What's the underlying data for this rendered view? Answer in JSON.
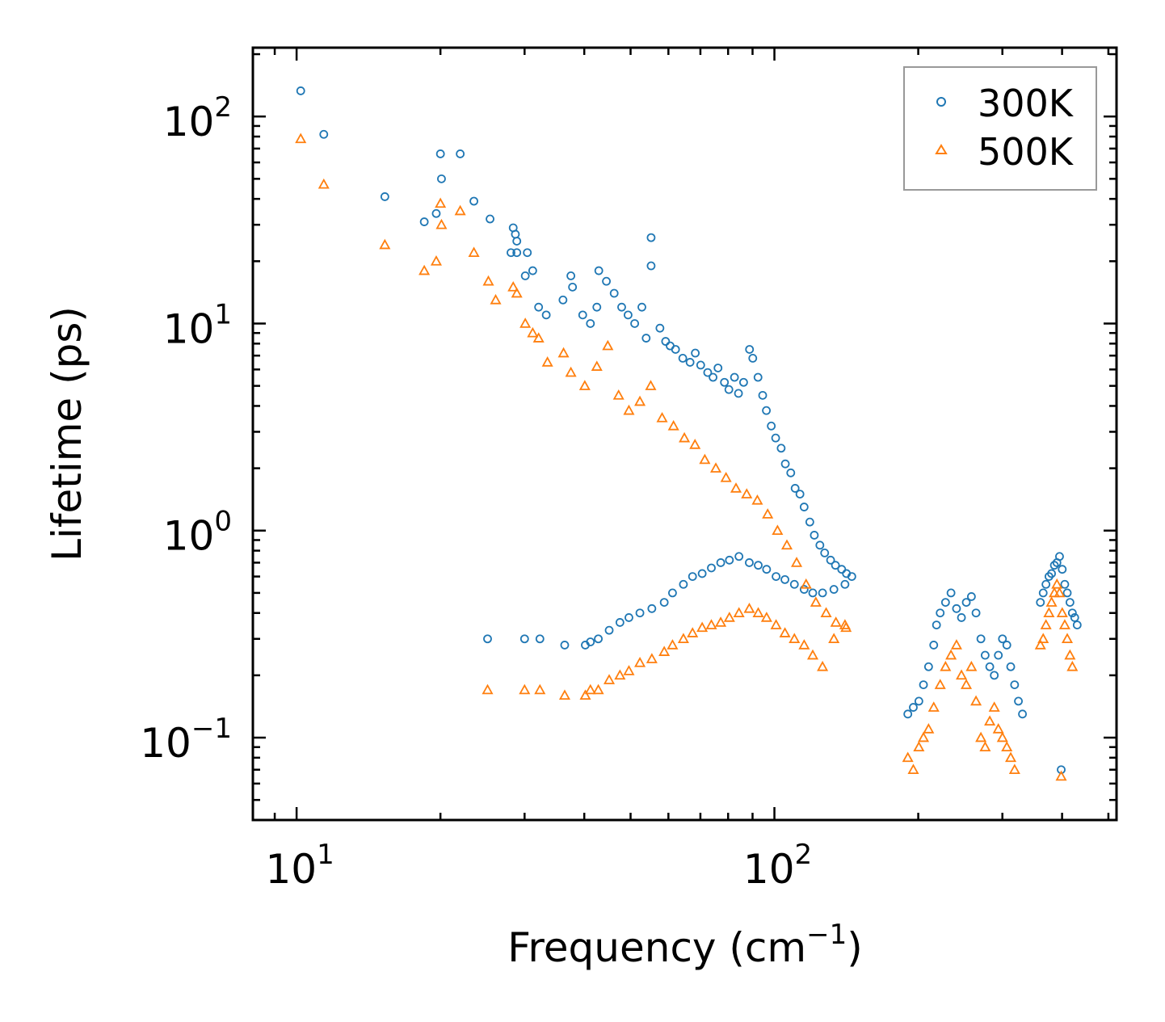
{
  "chart_data": {
    "type": "scatter",
    "title": "",
    "xlabel": "Frequency (cm",
    "xlabel_sup": "−1",
    "xlabel_suffix": ")",
    "ylabel": "Lifetime (ps)",
    "xscale": "log",
    "yscale": "log",
    "xlim": [
      8.1,
      520
    ],
    "ylim": [
      0.04,
      215
    ],
    "x_ticks": [
      {
        "base": "10",
        "exp": "1",
        "value": 10
      },
      {
        "base": "10",
        "exp": "2",
        "value": 100
      }
    ],
    "y_ticks": [
      {
        "base": "10",
        "exp": "−1",
        "value": 0.1
      },
      {
        "base": "10",
        "exp": "0",
        "value": 1
      },
      {
        "base": "10",
        "exp": "1",
        "value": 10
      },
      {
        "base": "10",
        "exp": "2",
        "value": 100
      }
    ],
    "legend": {
      "position": "top-right"
    },
    "series": [
      {
        "name": "300K",
        "marker": "circle",
        "color": "#1f77b4",
        "x": [
          10.2,
          11.4,
          15.3,
          18.5,
          19.6,
          20.0,
          20.1,
          22.0,
          23.5,
          25.4,
          28.1,
          28.4,
          28.7,
          28.9,
          28.9,
          30.1,
          30.4,
          31.2,
          32.1,
          33.3,
          36.1,
          37.5,
          37.8,
          39.7,
          41.2,
          42.5,
          42.9,
          44.5,
          46.2,
          47.9,
          49.4,
          51.0,
          52.8,
          53.9,
          55.2,
          55.2,
          57.6,
          59.2,
          60.5,
          62.1,
          64.3,
          66.6,
          68.3,
          70.1,
          72.5,
          74.4,
          76.2,
          78.6,
          80.3,
          82.5,
          84.1,
          86.2,
          88.7,
          90.1,
          92.4,
          94.5,
          96.2,
          98.5,
          100.6,
          103.3,
          105.4,
          108.2,
          110.5,
          113.1,
          115.4,
          118.6,
          121.2,
          124.5,
          127.4,
          131.1,
          134.2,
          138.3,
          141.5,
          145.2,
          25.1,
          30.0,
          32.3,
          36.4,
          40.2,
          41.2,
          42.8,
          45.1,
          47.5,
          49.6,
          52.3,
          55.4,
          58.8,
          61.2,
          64.5,
          67.4,
          70.6,
          73.8,
          77.2,
          80.5,
          84.3,
          88.6,
          92.5,
          96.3,
          100.8,
          105.2,
          110.1,
          115.4,
          120.3,
          126.1,
          133.2,
          140.5,
          190.2,
          195.3,
          200.6,
          205.1,
          210.2,
          215.5,
          218.4,
          222.3,
          228.1,
          234.2,
          240.5,
          246.3,
          252.1,
          258.4,
          264.2,
          270.5,
          276.1,
          282.3,
          288.5,
          294.2,
          300.1,
          306.5,
          312.3,
          318.2,
          324.1,
          330.5,
          360.3,
          365.2,
          370.1,
          375.5,
          380.2,
          385.4,
          390.2,
          395.1,
          400.3,
          405.2,
          410.1,
          415.5,
          420.3,
          425.1,
          430.2,
          398.3
        ],
        "y": [
          133,
          82,
          41,
          31,
          34,
          66,
          50,
          66,
          39,
          32,
          22,
          29,
          27,
          25,
          22,
          17,
          22,
          18,
          12,
          11,
          13,
          17,
          15,
          11,
          10,
          12,
          18,
          16,
          14,
          12,
          11,
          10,
          12,
          8.5,
          19,
          26,
          9.5,
          8.2,
          7.8,
          7.5,
          6.8,
          6.5,
          7.2,
          6.3,
          5.8,
          5.5,
          6.1,
          5.2,
          4.8,
          5.5,
          4.6,
          5.2,
          7.5,
          6.8,
          5.5,
          4.5,
          3.8,
          3.2,
          2.8,
          2.5,
          2.1,
          1.9,
          1.6,
          1.5,
          1.3,
          1.1,
          0.95,
          0.85,
          0.78,
          0.72,
          0.68,
          0.65,
          0.62,
          0.6,
          0.3,
          0.3,
          0.3,
          0.28,
          0.28,
          0.29,
          0.3,
          0.33,
          0.36,
          0.38,
          0.4,
          0.42,
          0.45,
          0.5,
          0.55,
          0.6,
          0.62,
          0.66,
          0.7,
          0.72,
          0.75,
          0.7,
          0.68,
          0.65,
          0.6,
          0.58,
          0.55,
          0.52,
          0.5,
          0.5,
          0.52,
          0.55,
          0.13,
          0.14,
          0.15,
          0.18,
          0.22,
          0.28,
          0.35,
          0.4,
          0.45,
          0.5,
          0.42,
          0.38,
          0.45,
          0.48,
          0.4,
          0.3,
          0.25,
          0.22,
          0.2,
          0.25,
          0.3,
          0.28,
          0.22,
          0.18,
          0.15,
          0.13,
          0.45,
          0.5,
          0.55,
          0.6,
          0.62,
          0.68,
          0.7,
          0.75,
          0.65,
          0.55,
          0.5,
          0.45,
          0.4,
          0.38,
          0.35,
          0.07
        ]
      },
      {
        "name": "500K",
        "marker": "triangle",
        "color": "#ff7f0e",
        "x": [
          10.2,
          11.4,
          15.3,
          18.5,
          19.6,
          20.0,
          20.1,
          22.0,
          23.5,
          25.2,
          26.1,
          28.4,
          28.9,
          30.1,
          31.2,
          32.1,
          33.5,
          36.2,
          37.5,
          40.1,
          42.5,
          44.8,
          47.2,
          49.6,
          52.3,
          55.1,
          58.2,
          61.5,
          64.8,
          68.2,
          71.5,
          75.4,
          79.2,
          83.1,
          87.5,
          92.1,
          96.8,
          101.5,
          106.2,
          111.3,
          116.5,
          122.1,
          128.3,
          134.5,
          141.2,
          25.1,
          30.0,
          32.3,
          36.4,
          40.2,
          41.2,
          42.8,
          45.1,
          47.5,
          49.6,
          52.3,
          55.4,
          58.8,
          61.2,
          64.5,
          67.4,
          70.6,
          73.8,
          77.2,
          80.5,
          84.3,
          88.6,
          92.5,
          96.3,
          100.8,
          105.2,
          110.1,
          115.4,
          120.3,
          126.1,
          133.2,
          140.5,
          190.2,
          195.3,
          200.6,
          205.1,
          210.2,
          215.5,
          222.3,
          228.1,
          234.2,
          240.5,
          246.3,
          252.1,
          258.4,
          264.2,
          270.5,
          276.1,
          282.3,
          288.5,
          294.2,
          300.1,
          306.5,
          312.3,
          318.2,
          360.3,
          365.2,
          370.1,
          375.5,
          380.2,
          385.4,
          390.2,
          395.1,
          400.3,
          405.2,
          410.1,
          415.5,
          420.3,
          398.3
        ],
        "y": [
          78,
          47,
          24,
          18,
          20,
          38,
          30,
          35,
          22,
          16,
          13,
          15,
          14,
          10,
          9,
          8.5,
          6.5,
          7.2,
          5.8,
          5.0,
          6.2,
          7.8,
          4.5,
          3.8,
          4.2,
          5.0,
          3.5,
          3.2,
          2.8,
          2.6,
          2.2,
          2.0,
          1.8,
          1.6,
          1.5,
          1.4,
          1.2,
          1.0,
          0.85,
          0.7,
          0.55,
          0.45,
          0.4,
          0.36,
          0.34,
          0.17,
          0.17,
          0.17,
          0.16,
          0.16,
          0.17,
          0.17,
          0.19,
          0.2,
          0.21,
          0.23,
          0.24,
          0.26,
          0.28,
          0.3,
          0.32,
          0.34,
          0.35,
          0.36,
          0.38,
          0.4,
          0.42,
          0.4,
          0.38,
          0.35,
          0.32,
          0.3,
          0.28,
          0.25,
          0.22,
          0.3,
          0.35,
          0.08,
          0.07,
          0.09,
          0.1,
          0.11,
          0.14,
          0.18,
          0.22,
          0.25,
          0.28,
          0.2,
          0.18,
          0.22,
          0.15,
          0.1,
          0.09,
          0.12,
          0.14,
          0.11,
          0.1,
          0.09,
          0.08,
          0.07,
          0.28,
          0.3,
          0.35,
          0.4,
          0.45,
          0.5,
          0.55,
          0.5,
          0.4,
          0.35,
          0.3,
          0.25,
          0.22,
          0.065
        ]
      }
    ]
  }
}
